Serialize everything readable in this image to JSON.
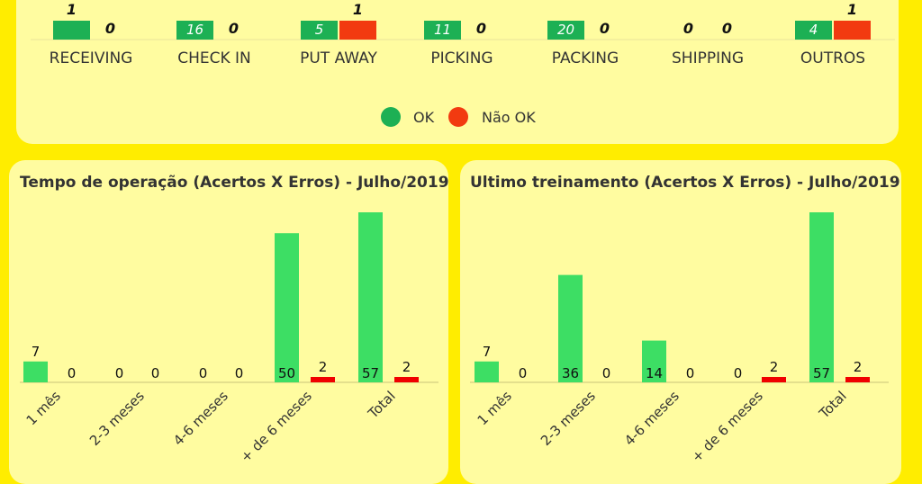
{
  "colors": {
    "ok": "#1DB054",
    "nok": "#F23A10",
    "ok_light": "#3DDE64",
    "nok_bright": "#F00000"
  },
  "top": {
    "categories": [
      "RECEIVING",
      "CHECK IN",
      "PUT AWAY",
      "PICKING",
      "PACKING",
      "SHIPPING",
      "OUTROS"
    ],
    "legend": {
      "ok": "OK",
      "nok": "Não OK"
    },
    "chart_data": {
      "type": "bar",
      "categories": [
        "RECEIVING",
        "CHECK IN",
        "PUT AWAY",
        "PICKING",
        "PACKING",
        "SHIPPING",
        "OUTROS"
      ],
      "series": [
        {
          "name": "OK",
          "values": [
            1,
            16,
            5,
            11,
            20,
            0,
            4
          ]
        },
        {
          "name": "Não OK",
          "values": [
            0,
            0,
            1,
            0,
            0,
            0,
            1
          ]
        }
      ]
    }
  },
  "left_chart": {
    "title": "Tempo de operação (Acertos X Erros) - Julho/2019",
    "chart_data": {
      "type": "bar",
      "categories": [
        "1 mês",
        "2-3 meses",
        "4-6 meses",
        "+ de 6 meses",
        "Total"
      ],
      "series": [
        {
          "values": [
            7,
            0,
            0,
            50,
            57
          ]
        },
        {
          "values": [
            0,
            0,
            0,
            2,
            2
          ]
        }
      ]
    }
  },
  "right_chart": {
    "title": "Ultimo treinamento (Acertos X Erros) - Julho/2019",
    "chart_data": {
      "type": "bar",
      "categories": [
        "1 mês",
        "2-3 meses",
        "4-6 meses",
        "+ de 6 meses",
        "Total"
      ],
      "series": [
        {
          "values": [
            7,
            36,
            14,
            0,
            57
          ]
        },
        {
          "values": [
            0,
            0,
            0,
            2,
            2
          ]
        }
      ]
    }
  }
}
